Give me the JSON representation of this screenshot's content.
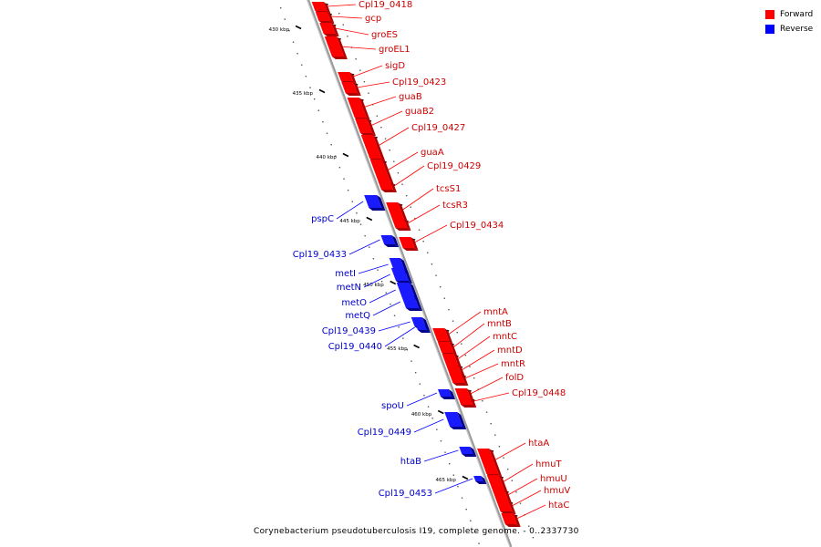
{
  "legend": {
    "forward_label": "Forward",
    "reverse_label": "Reverse",
    "forward_color": "#ff0000",
    "reverse_color": "#0000ff"
  },
  "colors": {
    "forward": "#ff0000",
    "forward_dark": "#b00000",
    "reverse": "#1a1aff",
    "reverse_dark": "#00008a",
    "backbone": "#999999"
  },
  "caption": "Corynebacterium pseudotuberculosis I19, complete genome. - 0..2337730",
  "ticks": [
    "430 kbp",
    "435 kbp",
    "440 kbp",
    "445 kbp",
    "450 kbp",
    "455 kbp",
    "460 kbp",
    "465 kbp"
  ],
  "forward_genes": [
    "Cpl19_0418",
    "gcp",
    "groES",
    "groEL1",
    "sigD",
    "Cpl19_0423",
    "guaB",
    "guaB2",
    "Cpl19_0427",
    "guaA",
    "Cpl19_0429",
    "tcsS1",
    "tcsR3",
    "Cpl19_0434",
    "mntA",
    "mntB",
    "mntC",
    "mntD",
    "mntR",
    "folD",
    "Cpl19_0448",
    "htaA",
    "hmuT",
    "hmuU",
    "hmuV",
    "htaC"
  ],
  "reverse_genes": [
    "pspC",
    "Cpl19_0433",
    "metI",
    "metN",
    "metO",
    "metQ",
    "Cpl19_0439",
    "Cpl19_0440",
    "spoU",
    "Cpl19_0449",
    "htaB",
    "Cpl19_0453"
  ]
}
